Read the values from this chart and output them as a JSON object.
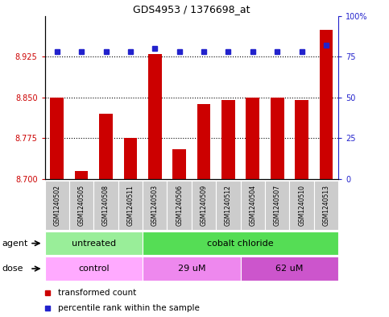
{
  "title": "GDS4953 / 1376698_at",
  "samples": [
    "GSM1240502",
    "GSM1240505",
    "GSM1240508",
    "GSM1240511",
    "GSM1240503",
    "GSM1240506",
    "GSM1240509",
    "GSM1240512",
    "GSM1240504",
    "GSM1240507",
    "GSM1240510",
    "GSM1240513"
  ],
  "bar_values": [
    8.85,
    8.715,
    8.82,
    8.775,
    8.93,
    8.755,
    8.838,
    8.846,
    8.85,
    8.85,
    8.845,
    8.975
  ],
  "percentile_values": [
    78,
    78,
    78,
    78,
    80,
    78,
    78,
    78,
    78,
    78,
    78,
    82
  ],
  "y_min": 8.7,
  "y_max": 9.0,
  "y_ticks": [
    8.7,
    8.775,
    8.85,
    8.925
  ],
  "right_y_ticks": [
    0,
    25,
    50,
    75,
    100
  ],
  "right_y_labels": [
    "0",
    "25",
    "50",
    "75",
    "100%"
  ],
  "bar_color": "#cc0000",
  "dot_color": "#2222cc",
  "agent_untreated_color": "#99ee99",
  "agent_cobalt_color": "#55dd55",
  "dose_control_color": "#ffaaff",
  "dose_29_color": "#ee88ee",
  "dose_62_color": "#cc55cc",
  "sample_bg_color": "#cccccc",
  "agent_groups": [
    {
      "label": "untreated",
      "start": 0,
      "end": 4
    },
    {
      "label": "cobalt chloride",
      "start": 4,
      "end": 12
    }
  ],
  "dose_groups": [
    {
      "label": "control",
      "start": 0,
      "end": 4
    },
    {
      "label": "29 uM",
      "start": 4,
      "end": 8
    },
    {
      "label": "62 uM",
      "start": 8,
      "end": 12
    }
  ],
  "legend_items": [
    {
      "label": "transformed count",
      "color": "#cc0000"
    },
    {
      "label": "percentile rank within the sample",
      "color": "#2222cc"
    }
  ]
}
